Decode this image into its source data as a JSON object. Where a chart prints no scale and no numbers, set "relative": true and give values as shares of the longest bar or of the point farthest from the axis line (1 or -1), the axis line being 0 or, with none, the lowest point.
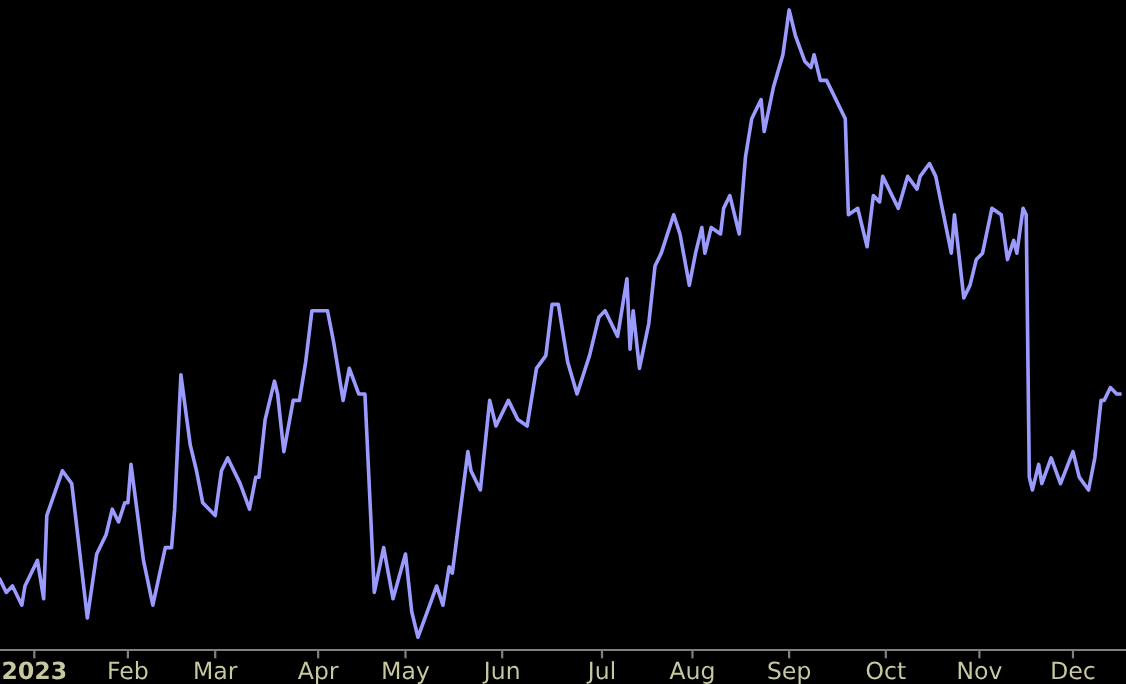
{
  "chart_data": {
    "type": "line",
    "relative": true,
    "tick_labels": "x",
    "marker": "none",
    "line_style": "solid",
    "xlim": [
      "2022-12-22",
      "2023-12-18"
    ],
    "xticks": [
      {
        "value": "2023-01-02",
        "label": "2023"
      },
      {
        "value": "2023-02-01",
        "label": "Feb"
      },
      {
        "value": "2023-03-01",
        "label": "Mar"
      },
      {
        "value": "2023-04-03",
        "label": "Apr"
      },
      {
        "value": "2023-05-01",
        "label": "May"
      },
      {
        "value": "2023-06-01",
        "label": "Jun"
      },
      {
        "value": "2023-07-03",
        "label": "Jul"
      },
      {
        "value": "2023-08-01",
        "label": "Aug"
      },
      {
        "value": "2023-09-01",
        "label": "Sep"
      },
      {
        "value": "2023-10-02",
        "label": "Oct"
      },
      {
        "value": "2023-11-01",
        "label": "Nov"
      },
      {
        "value": "2023-12-01",
        "label": "Dec"
      }
    ],
    "series": [
      {
        "color": "#9a9aff",
        "x": [
          "2022-12-22",
          "2022-12-24",
          "2022-12-26",
          "2022-12-29",
          "2022-12-30",
          "2023-01-03",
          "2023-01-05",
          "2023-01-06",
          "2023-01-11",
          "2023-01-14",
          "2023-01-19",
          "2023-01-22",
          "2023-01-25",
          "2023-01-27",
          "2023-01-29",
          "2023-01-31",
          "2023-02-01",
          "2023-02-02",
          "2023-02-06",
          "2023-02-09",
          "2023-02-13",
          "2023-02-15",
          "2023-02-16",
          "2023-02-18",
          "2023-02-21",
          "2023-02-23",
          "2023-02-25",
          "2023-03-01",
          "2023-03-03",
          "2023-03-05",
          "2023-03-09",
          "2023-03-12",
          "2023-03-14",
          "2023-03-15",
          "2023-03-17",
          "2023-03-20",
          "2023-03-21",
          "2023-03-23",
          "2023-03-26",
          "2023-03-28",
          "2023-03-30",
          "2023-04-01",
          "2023-04-06",
          "2023-04-08",
          "2023-04-11",
          "2023-04-13",
          "2023-04-16",
          "2023-04-18",
          "2023-04-21",
          "2023-04-24",
          "2023-04-27",
          "2023-05-01",
          "2023-05-03",
          "2023-05-05",
          "2023-05-08",
          "2023-05-11",
          "2023-05-13",
          "2023-05-15",
          "2023-05-16",
          "2023-05-21",
          "2023-05-22",
          "2023-05-25",
          "2023-05-28",
          "2023-05-30",
          "2023-06-03",
          "2023-06-06",
          "2023-06-09",
          "2023-06-12",
          "2023-06-15",
          "2023-06-17",
          "2023-06-19",
          "2023-06-22",
          "2023-06-25",
          "2023-06-29",
          "2023-07-02",
          "2023-07-04",
          "2023-07-08",
          "2023-07-11",
          "2023-07-12",
          "2023-07-13",
          "2023-07-15",
          "2023-07-18",
          "2023-07-20",
          "2023-07-22",
          "2023-07-26",
          "2023-07-28",
          "2023-07-31",
          "2023-08-02",
          "2023-08-04",
          "2023-08-05",
          "2023-08-07",
          "2023-08-10",
          "2023-08-11",
          "2023-08-13",
          "2023-08-16",
          "2023-08-18",
          "2023-08-20",
          "2023-08-23",
          "2023-08-24",
          "2023-08-27",
          "2023-08-30",
          "2023-09-01",
          "2023-09-03",
          "2023-09-06",
          "2023-09-08",
          "2023-09-09",
          "2023-09-11",
          "2023-09-13",
          "2023-09-15",
          "2023-09-19",
          "2023-09-20",
          "2023-09-23",
          "2023-09-26",
          "2023-09-28",
          "2023-09-30",
          "2023-10-01",
          "2023-10-06",
          "2023-10-09",
          "2023-10-12",
          "2023-10-13",
          "2023-10-16",
          "2023-10-18",
          "2023-10-23",
          "2023-10-24",
          "2023-10-27",
          "2023-10-29",
          "2023-10-31",
          "2023-11-02",
          "2023-11-05",
          "2023-11-08",
          "2023-11-10",
          "2023-11-12",
          "2023-11-13",
          "2023-11-15",
          "2023-11-16",
          "2023-11-17",
          "2023-11-18",
          "2023-11-20",
          "2023-11-21",
          "2023-11-24",
          "2023-11-27",
          "2023-12-01",
          "2023-12-03",
          "2023-12-06",
          "2023-12-08",
          "2023-12-10",
          "2023-12-11",
          "2023-12-13",
          "2023-12-15",
          "2023-12-16"
        ],
        "values": [
          0.11,
          0.09,
          0.1,
          0.07,
          0.1,
          0.14,
          0.08,
          0.21,
          0.28,
          0.26,
          0.05,
          0.15,
          0.18,
          0.22,
          0.2,
          0.23,
          0.23,
          0.29,
          0.14,
          0.07,
          0.16,
          0.16,
          0.22,
          0.43,
          0.32,
          0.28,
          0.23,
          0.21,
          0.28,
          0.3,
          0.26,
          0.22,
          0.27,
          0.27,
          0.36,
          0.42,
          0.4,
          0.31,
          0.39,
          0.39,
          0.45,
          0.53,
          0.53,
          0.48,
          0.39,
          0.44,
          0.4,
          0.4,
          0.09,
          0.16,
          0.08,
          0.15,
          0.06,
          0.02,
          0.06,
          0.1,
          0.07,
          0.13,
          0.12,
          0.31,
          0.28,
          0.25,
          0.39,
          0.35,
          0.39,
          0.36,
          0.35,
          0.44,
          0.46,
          0.54,
          0.54,
          0.45,
          0.4,
          0.46,
          0.52,
          0.53,
          0.49,
          0.58,
          0.47,
          0.53,
          0.44,
          0.51,
          0.6,
          0.62,
          0.68,
          0.65,
          0.57,
          0.62,
          0.66,
          0.62,
          0.66,
          0.65,
          0.69,
          0.71,
          0.65,
          0.77,
          0.83,
          0.86,
          0.81,
          0.88,
          0.93,
          1.0,
          0.96,
          0.92,
          0.91,
          0.93,
          0.89,
          0.89,
          0.87,
          0.83,
          0.68,
          0.69,
          0.63,
          0.71,
          0.7,
          0.74,
          0.69,
          0.74,
          0.72,
          0.74,
          0.76,
          0.74,
          0.62,
          0.68,
          0.55,
          0.57,
          0.61,
          0.62,
          0.69,
          0.68,
          0.61,
          0.64,
          0.62,
          0.69,
          0.68,
          0.27,
          0.25,
          0.29,
          0.26,
          0.3,
          0.26,
          0.31,
          0.27,
          0.25,
          0.3,
          0.39,
          0.39,
          0.41,
          0.4,
          0.4
        ]
      }
    ]
  }
}
